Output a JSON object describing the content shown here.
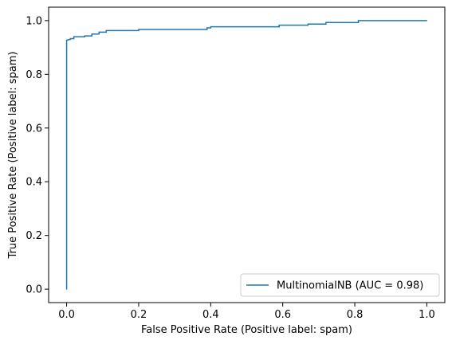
{
  "chart_data": {
    "type": "line",
    "title": "",
    "xlabel": "False Positive Rate (Positive label: spam)",
    "ylabel": "True Positive Rate (Positive label: spam)",
    "xlim": [
      -0.05,
      1.05
    ],
    "ylim": [
      -0.05,
      1.05
    ],
    "xticks": [
      0.0,
      0.2,
      0.4,
      0.6,
      0.8,
      1.0
    ],
    "xtick_labels": [
      "0.0",
      "0.2",
      "0.4",
      "0.6",
      "0.8",
      "1.0"
    ],
    "yticks": [
      0.0,
      0.2,
      0.4,
      0.6,
      0.8,
      1.0
    ],
    "ytick_labels": [
      "0.0",
      "0.2",
      "0.4",
      "0.6",
      "0.8",
      "1.0"
    ],
    "grid": false,
    "legend": {
      "position": "lower-right",
      "entries": [
        "MultinomialNB (AUC = 0.98)"
      ]
    },
    "series": [
      {
        "name": "MultinomialNB (AUC = 0.98)",
        "color": "#1f77b4",
        "drawstyle": "steps-post",
        "x": [
          0.0,
          0.0,
          0.0,
          0.01,
          0.01,
          0.02,
          0.02,
          0.05,
          0.05,
          0.07,
          0.07,
          0.09,
          0.09,
          0.11,
          0.11,
          0.2,
          0.2,
          0.39,
          0.39,
          0.4,
          0.4,
          0.59,
          0.59,
          0.67,
          0.67,
          0.72,
          0.72,
          0.81,
          0.81,
          1.0
        ],
        "y": [
          0.0,
          0.927,
          0.927,
          0.93,
          0.933,
          0.933,
          0.94,
          0.94,
          0.943,
          0.943,
          0.95,
          0.95,
          0.957,
          0.957,
          0.963,
          0.963,
          0.967,
          0.967,
          0.973,
          0.973,
          0.977,
          0.977,
          0.983,
          0.983,
          0.987,
          0.987,
          0.993,
          0.993,
          1.0,
          1.0
        ]
      }
    ]
  }
}
